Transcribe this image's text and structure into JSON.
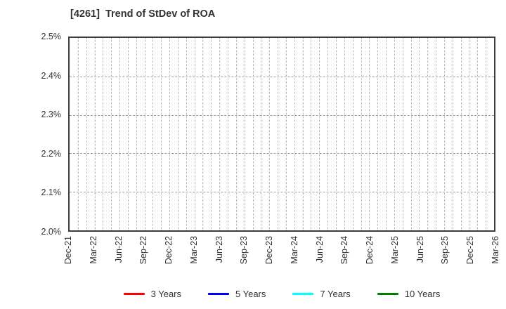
{
  "page": {
    "background": "#ffffff"
  },
  "chart_data": {
    "type": "line",
    "title": "[4261]  Trend of StDev of ROA",
    "title_color": "#333333",
    "grid": true,
    "frame_color": "#3d3d3d",
    "x_tick_labels": [
      "Dec-21",
      "Mar-22",
      "Jun-22",
      "Sep-22",
      "Dec-22",
      "Mar-23",
      "Jun-23",
      "Sep-23",
      "Dec-23",
      "Mar-24",
      "Jun-24",
      "Sep-24",
      "Dec-24",
      "Mar-25",
      "Jun-25",
      "Sep-25",
      "Dec-25",
      "Mar-26"
    ],
    "x_minor_divisions_per_interval": 3,
    "y_tick_labels": [
      "2.5%",
      "2.4%",
      "2.3%",
      "2.2%",
      "2.1%",
      "2.0%"
    ],
    "ylim": [
      2.0,
      2.5
    ],
    "y_unit": "%",
    "legend_position": "bottom",
    "series": [
      {
        "name": "3 Years",
        "color": "#ff0000",
        "values": []
      },
      {
        "name": "5 Years",
        "color": "#0000ff",
        "values": []
      },
      {
        "name": "7 Years",
        "color": "#00ffff",
        "values": []
      },
      {
        "name": "10 Years",
        "color": "#008000",
        "values": []
      }
    ],
    "plotted_data_visible": false
  }
}
